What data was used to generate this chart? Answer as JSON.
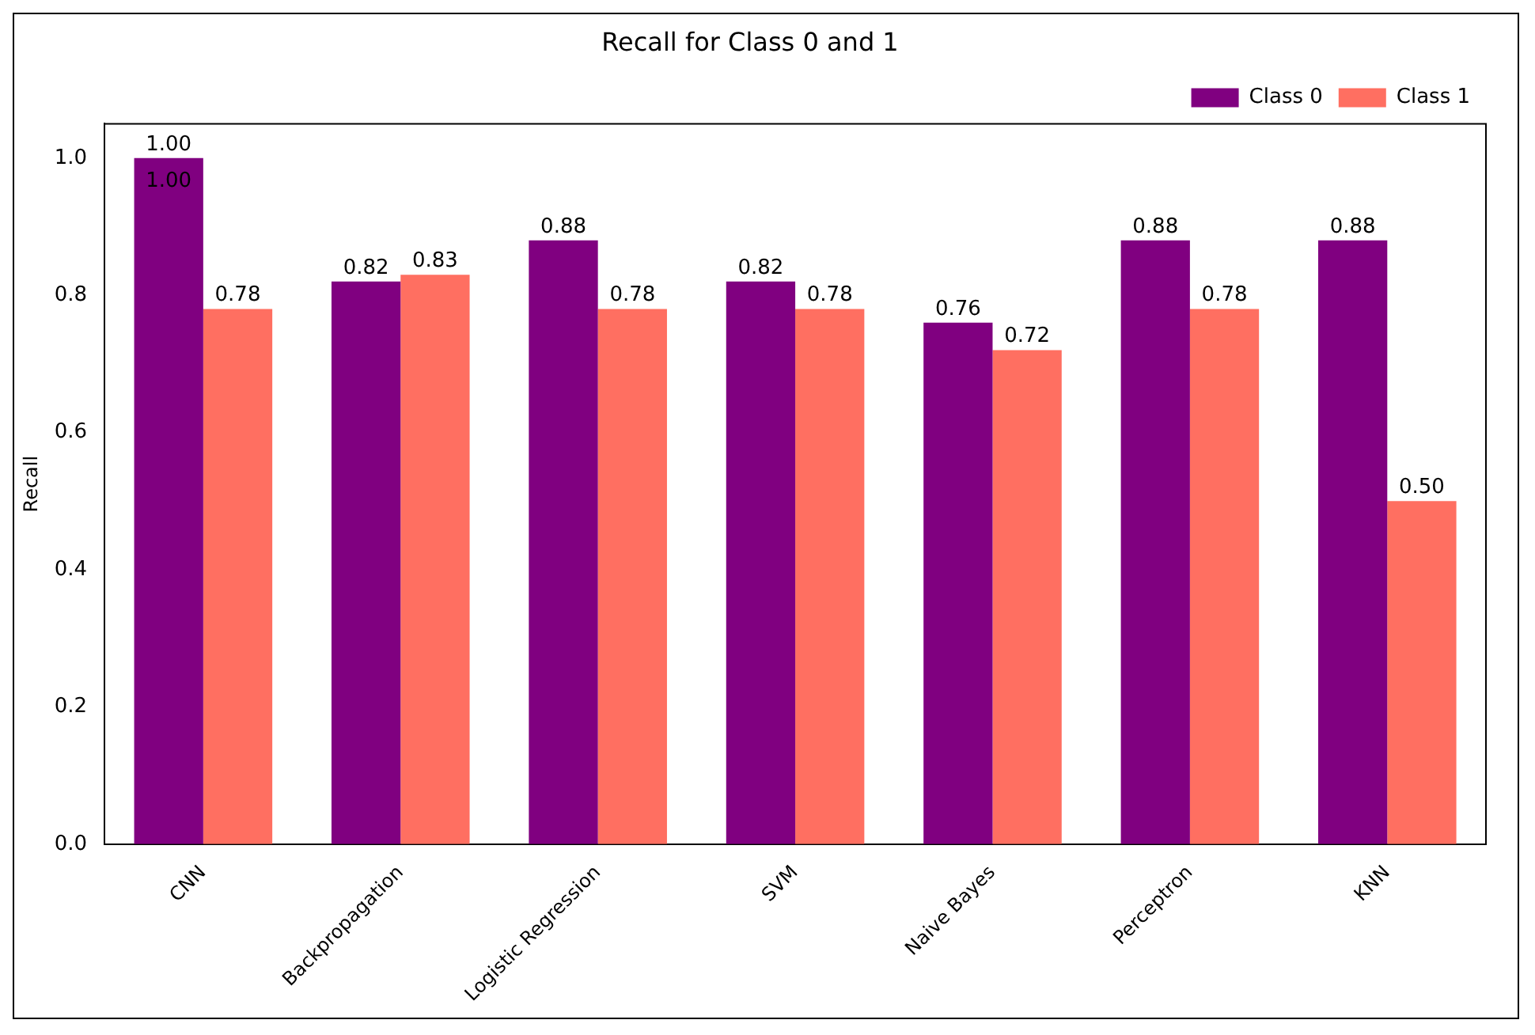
{
  "chart_data": {
    "type": "bar",
    "title": "Recall for Class 0 and 1",
    "ylabel": "Recall",
    "categories": [
      "CNN",
      "Backpropagation",
      "Logistic Regression",
      "SVM",
      "Naive Bayes",
      "Perceptron",
      "KNN"
    ],
    "series": [
      {
        "name": "Class 0",
        "color": "#800080",
        "values": [
          1.0,
          0.82,
          0.88,
          0.82,
          0.76,
          0.88,
          0.88
        ],
        "value_labels": [
          "1.00",
          "0.82",
          "0.88",
          "0.82",
          "0.76",
          "0.88",
          "0.88"
        ]
      },
      {
        "name": "Class 1",
        "color": "#ff6f61",
        "values": [
          0.78,
          0.83,
          0.78,
          0.78,
          0.72,
          0.78,
          0.5
        ],
        "value_labels": [
          "0.78",
          "0.83",
          "0.78",
          "0.78",
          "0.72",
          "0.78",
          "0.50"
        ]
      }
    ],
    "annotations": [
      {
        "text": "1.00",
        "x": "CNN",
        "y": 1.0
      }
    ],
    "ylim": [
      0,
      1.05
    ],
    "yticks": [
      {
        "value": 0,
        "label": "0.0"
      },
      {
        "value": 0.2,
        "label": "0.2"
      },
      {
        "value": 0.4,
        "label": "0.4"
      },
      {
        "value": 0.6,
        "label": "0.6"
      },
      {
        "value": 0.8,
        "label": "0.8"
      },
      {
        "value": 1,
        "label": "1.0"
      }
    ],
    "grid": false,
    "legend": "top right"
  }
}
